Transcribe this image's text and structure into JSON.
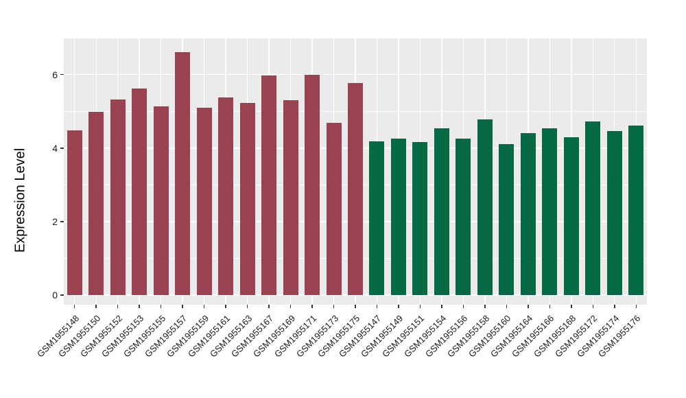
{
  "chart_data": {
    "type": "bar",
    "title": "",
    "xlabel": "",
    "ylabel": "Expression Level",
    "ylim": [
      0,
      7
    ],
    "yticks": [
      0,
      2,
      4,
      6
    ],
    "yminor": [
      1,
      3,
      5,
      7
    ],
    "grid": "on",
    "legend": "none",
    "colors": {
      "panel_background": "#EBEBEB",
      "grid": "#FFFFFF",
      "axis_text": "#1A1A1A",
      "tick_mark": "#333333",
      "group_red": "#9A424F",
      "group_green": "#056943"
    },
    "bars": [
      {
        "label": "GSM1955148",
        "value": 4.48,
        "group": "group_red"
      },
      {
        "label": "GSM1955150",
        "value": 4.98,
        "group": "group_red"
      },
      {
        "label": "GSM1955152",
        "value": 5.32,
        "group": "group_red"
      },
      {
        "label": "GSM1955153",
        "value": 5.62,
        "group": "group_red"
      },
      {
        "label": "GSM1955155",
        "value": 5.13,
        "group": "group_red"
      },
      {
        "label": "GSM1955157",
        "value": 6.62,
        "group": "group_red"
      },
      {
        "label": "GSM1955159",
        "value": 5.1,
        "group": "group_red"
      },
      {
        "label": "GSM1955161",
        "value": 5.38,
        "group": "group_red"
      },
      {
        "label": "GSM1955163",
        "value": 5.23,
        "group": "group_red"
      },
      {
        "label": "GSM1955167",
        "value": 5.97,
        "group": "group_red"
      },
      {
        "label": "GSM1955169",
        "value": 5.3,
        "group": "group_red"
      },
      {
        "label": "GSM1955171",
        "value": 5.99,
        "group": "group_red"
      },
      {
        "label": "GSM1955173",
        "value": 4.68,
        "group": "group_red"
      },
      {
        "label": "GSM1955175",
        "value": 5.77,
        "group": "group_red"
      },
      {
        "label": "GSM1955147",
        "value": 4.19,
        "group": "group_green"
      },
      {
        "label": "GSM1955149",
        "value": 4.25,
        "group": "group_green"
      },
      {
        "label": "GSM1955151",
        "value": 4.17,
        "group": "group_green"
      },
      {
        "label": "GSM1955154",
        "value": 4.54,
        "group": "group_green"
      },
      {
        "label": "GSM1955156",
        "value": 4.25,
        "group": "group_green"
      },
      {
        "label": "GSM1955158",
        "value": 4.79,
        "group": "group_green"
      },
      {
        "label": "GSM1955160",
        "value": 4.1,
        "group": "group_green"
      },
      {
        "label": "GSM1955164",
        "value": 4.41,
        "group": "group_green"
      },
      {
        "label": "GSM1955166",
        "value": 4.54,
        "group": "group_green"
      },
      {
        "label": "GSM1955168",
        "value": 4.29,
        "group": "group_green"
      },
      {
        "label": "GSM1955172",
        "value": 4.72,
        "group": "group_green"
      },
      {
        "label": "GSM1955174",
        "value": 4.46,
        "group": "group_green"
      },
      {
        "label": "GSM1955176",
        "value": 4.62,
        "group": "group_green"
      }
    ]
  }
}
